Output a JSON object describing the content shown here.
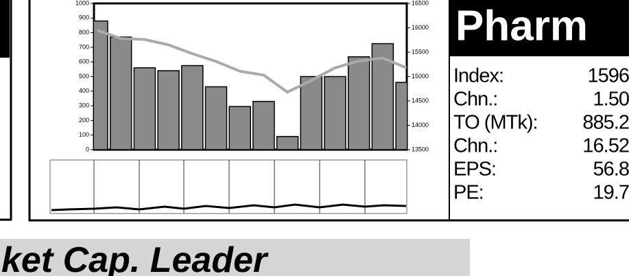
{
  "chart_data": {
    "type": "bar_line",
    "series": [
      {
        "color": "#8a8a8a",
        "axis": "y",
        "values": [
          880,
          770,
          560,
          540,
          575,
          430,
          295,
          330,
          90,
          500,
          500,
          635,
          725,
          460
        ]
      },
      {
        "color": "#aaaaaa",
        "axis": "y2",
        "values": [
          15950,
          15780,
          15760,
          15650,
          15470,
          15310,
          15110,
          15030,
          14680,
          14920,
          15180,
          15320,
          15380,
          15180
        ]
      }
    ],
    "ylim": [
      0,
      1000
    ],
    "yticks": [
      0,
      100,
      200,
      300,
      400,
      500,
      600,
      700,
      800,
      900,
      1000
    ],
    "y2lim": [
      13500,
      16500
    ],
    "y2ticks": [
      13500,
      14000,
      14500,
      15000,
      15500,
      16000,
      16500
    ]
  },
  "panel": {
    "title": "Pharm",
    "rows": [
      [
        "Index:",
        "1596"
      ],
      [
        "Chn.:",
        "1.50"
      ],
      [
        "TO (MTk):",
        "885.2"
      ],
      [
        "Chn.:",
        "16.52"
      ],
      [
        "EPS:",
        "56.8"
      ],
      [
        "PE:",
        "19.7"
      ]
    ]
  },
  "banner": "ket Cap. Leader"
}
